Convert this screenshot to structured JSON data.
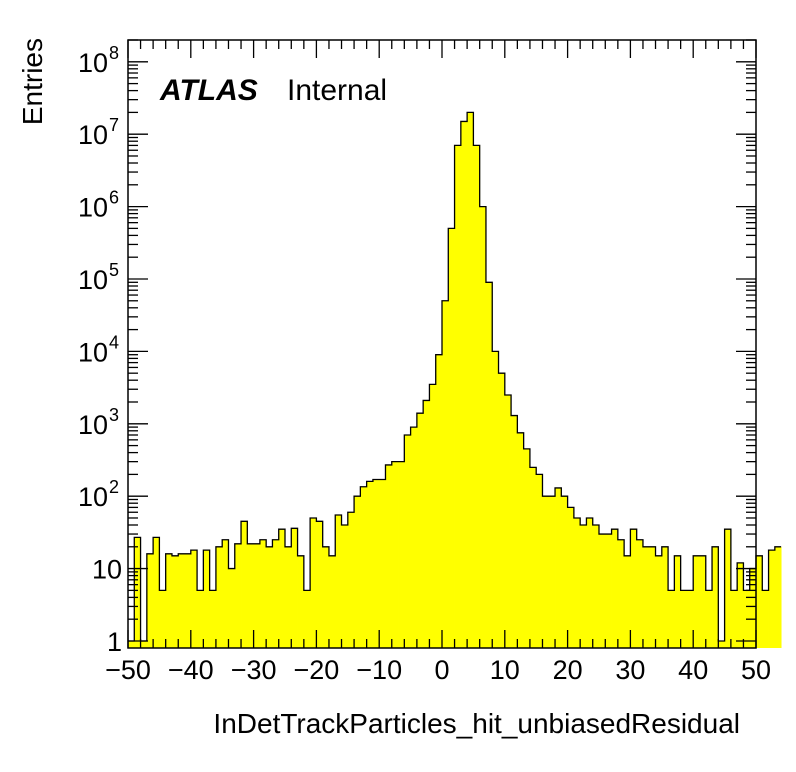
{
  "chart_data": {
    "type": "histogram",
    "xlabel": "InDetTrackParticles_hit_unbiasedResidual",
    "ylabel": "Entries",
    "xlim": [
      -50,
      50
    ],
    "ylim": [
      0.8,
      200000000
    ],
    "yscale": "log",
    "bin_width": 1,
    "fill_color": "#ffff00",
    "line_color": "#000000",
    "x_ticks": [
      -50,
      -40,
      -30,
      -20,
      -10,
      0,
      10,
      20,
      30,
      40,
      50
    ],
    "x_tick_labels": [
      "−50",
      "−40",
      "−30",
      "−20",
      "−10",
      "0",
      "10",
      "20",
      "30",
      "40",
      "50"
    ],
    "y_ticks": [
      {
        "value": 1,
        "base": "1",
        "exp": ""
      },
      {
        "value": 10,
        "base": "10",
        "exp": ""
      },
      {
        "value": 100,
        "base": "10",
        "exp": "2"
      },
      {
        "value": 1000,
        "base": "10",
        "exp": "3"
      },
      {
        "value": 10000,
        "base": "10",
        "exp": "4"
      },
      {
        "value": 100000,
        "base": "10",
        "exp": "5"
      },
      {
        "value": 1000000,
        "base": "10",
        "exp": "6"
      },
      {
        "value": 10000000,
        "base": "10",
        "exp": "7"
      },
      {
        "value": 100000000,
        "base": "10",
        "exp": "8"
      }
    ],
    "annotations": {
      "atlas": "ATLAS",
      "label": "Internal"
    },
    "bin_edges_start": -50,
    "values": [
      1,
      27,
      1,
      16,
      27,
      5,
      16,
      15,
      16,
      16,
      18,
      5,
      18,
      5,
      20,
      25,
      10,
      22,
      45,
      22,
      22,
      25,
      20,
      25,
      35,
      20,
      36,
      15,
      5,
      50,
      45,
      20,
      15,
      55,
      40,
      60,
      100,
      135,
      160,
      170,
      170,
      270,
      300,
      300,
      700,
      900,
      1400,
      2100,
      3500,
      9000,
      50000,
      500000,
      7000000,
      15000000,
      20000000,
      7000000,
      1000000,
      90000,
      10000,
      5000,
      2500,
      1300,
      750,
      450,
      250,
      200,
      100,
      100,
      130,
      100,
      70,
      50,
      40,
      50,
      40,
      30,
      30,
      35,
      25,
      15,
      35,
      25,
      20,
      20,
      15,
      20,
      5,
      15,
      5,
      5,
      15,
      15,
      5,
      20,
      1,
      35,
      5,
      12,
      5,
      10,
      15,
      5,
      18,
      20
    ]
  }
}
